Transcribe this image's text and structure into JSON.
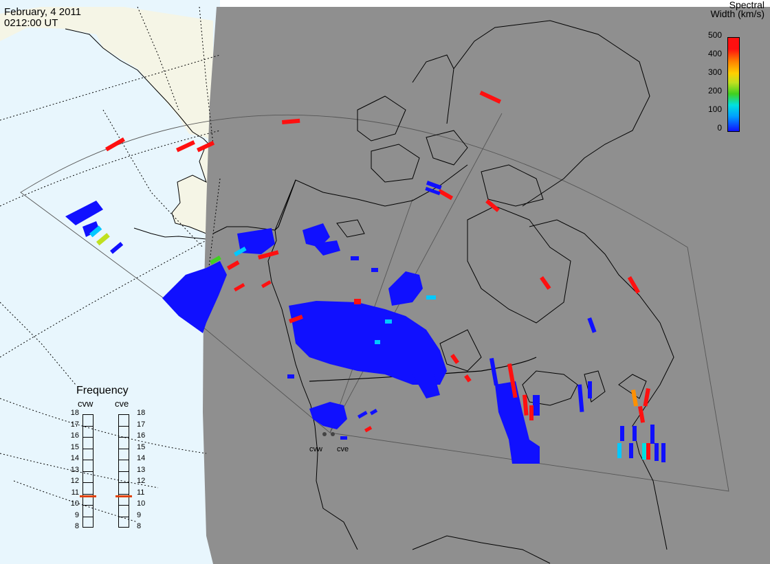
{
  "header": {
    "date": "February, 4 2011",
    "time": "0212:00 UT"
  },
  "colorbar": {
    "title_line1": "Spectral",
    "title_line2": "Width (km/s)",
    "ticks": [
      "500",
      "400",
      "300",
      "200",
      "100",
      "0"
    ],
    "colors": [
      "#1010ff",
      "#00a0ff",
      "#00e0e0",
      "#40d020",
      "#c0e020",
      "#ffd000",
      "#ff8000",
      "#ff1010"
    ]
  },
  "radars": [
    {
      "code": "cvw"
    },
    {
      "code": "cve"
    }
  ],
  "frequency_panel": {
    "title": "Frequency",
    "columns": [
      "cvw",
      "cve"
    ],
    "ticks": [
      "18",
      "17",
      "16",
      "15",
      "14",
      "13",
      "12",
      "11",
      "10",
      "9",
      "8"
    ],
    "cvw_mhz": 10.8,
    "cve_mhz": 10.8,
    "marker_color": "#e04000"
  },
  "map_colors": {
    "night": "#8f8f8f",
    "ocean": "#e8f6fd",
    "land_day": "#f5f5e6"
  }
}
